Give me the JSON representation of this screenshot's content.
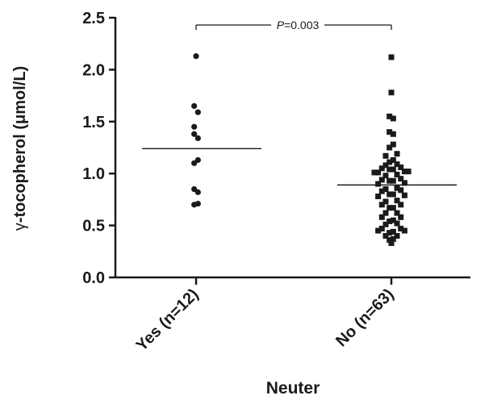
{
  "chart_data": {
    "type": "scatter",
    "title": "",
    "xlabel": "Neuter",
    "ylabel_prefix": "γ",
    "ylabel": "-tocopherol (μmol/L)",
    "ylim": [
      0,
      2.5
    ],
    "yticks": [
      "0.0",
      "0.5",
      "1.0",
      "1.5",
      "2.0",
      "2.5"
    ],
    "categories": [
      "Yes (n=12)",
      "No (n=63)"
    ],
    "annotation": {
      "p_prefix": "P",
      "p_value": "=0.003"
    },
    "series": [
      {
        "category": "Yes (n=12)",
        "marker": "circle",
        "mean": 1.24,
        "points": [
          {
            "dx": 0,
            "y": 2.13
          },
          {
            "dx": -0.3,
            "y": 1.65
          },
          {
            "dx": 0.3,
            "y": 1.59
          },
          {
            "dx": -0.3,
            "y": 1.45
          },
          {
            "dx": -0.3,
            "y": 1.38
          },
          {
            "dx": 0.3,
            "y": 1.34
          },
          {
            "dx": 0.3,
            "y": 1.13
          },
          {
            "dx": -0.3,
            "y": 1.1
          },
          {
            "dx": -0.3,
            "y": 0.85
          },
          {
            "dx": 0.3,
            "y": 0.82
          },
          {
            "dx": -0.3,
            "y": 0.7
          },
          {
            "dx": 0.3,
            "y": 0.71
          }
        ]
      },
      {
        "category": "No (n=63)",
        "marker": "square",
        "mean": 0.89,
        "points": [
          {
            "dx": 0,
            "y": 2.12
          },
          {
            "dx": 0,
            "y": 1.78
          },
          {
            "dx": -0.3,
            "y": 1.55
          },
          {
            "dx": 0.3,
            "y": 1.53
          },
          {
            "dx": -0.3,
            "y": 1.4
          },
          {
            "dx": 0.3,
            "y": 1.38
          },
          {
            "dx": 0.3,
            "y": 1.28
          },
          {
            "dx": -0.3,
            "y": 1.25
          },
          {
            "dx": 0.9,
            "y": 1.19
          },
          {
            "dx": -0.9,
            "y": 1.17
          },
          {
            "dx": 0.3,
            "y": 1.13
          },
          {
            "dx": -0.3,
            "y": 1.11
          },
          {
            "dx": 0.9,
            "y": 1.09
          },
          {
            "dx": -0.9,
            "y": 1.08
          },
          {
            "dx": 1.5,
            "y": 1.06
          },
          {
            "dx": -1.5,
            "y": 1.05
          },
          {
            "dx": 0.3,
            "y": 1.04
          },
          {
            "dx": -0.3,
            "y": 1.04
          },
          {
            "dx": 2.1,
            "y": 1.02
          },
          {
            "dx": -2.1,
            "y": 1.01
          },
          {
            "dx": 2.7,
            "y": 1.02
          },
          {
            "dx": -2.7,
            "y": 1.01
          },
          {
            "dx": 0.9,
            "y": 0.99
          },
          {
            "dx": -0.9,
            "y": 0.98
          },
          {
            "dx": 1.5,
            "y": 0.95
          },
          {
            "dx": -1.5,
            "y": 0.94
          },
          {
            "dx": 0.3,
            "y": 0.93
          },
          {
            "dx": -0.3,
            "y": 0.93
          },
          {
            "dx": 2.1,
            "y": 0.91
          },
          {
            "dx": -2.1,
            "y": 0.9
          },
          {
            "dx": 0.9,
            "y": 0.86
          },
          {
            "dx": -0.9,
            "y": 0.85
          },
          {
            "dx": 1.5,
            "y": 0.84
          },
          {
            "dx": -1.5,
            "y": 0.83
          },
          {
            "dx": 0.3,
            "y": 0.8
          },
          {
            "dx": -0.3,
            "y": 0.8
          },
          {
            "dx": 2.1,
            "y": 0.79
          },
          {
            "dx": -2.1,
            "y": 0.78
          },
          {
            "dx": 0.9,
            "y": 0.74
          },
          {
            "dx": -0.9,
            "y": 0.73
          },
          {
            "dx": 1.5,
            "y": 0.7
          },
          {
            "dx": -1.5,
            "y": 0.7
          },
          {
            "dx": 0.3,
            "y": 0.67
          },
          {
            "dx": -0.3,
            "y": 0.67
          },
          {
            "dx": 0.9,
            "y": 0.62
          },
          {
            "dx": -0.9,
            "y": 0.62
          },
          {
            "dx": 1.5,
            "y": 0.58
          },
          {
            "dx": -1.5,
            "y": 0.58
          },
          {
            "dx": 0.3,
            "y": 0.55
          },
          {
            "dx": -0.3,
            "y": 0.54
          },
          {
            "dx": 0.9,
            "y": 0.52
          },
          {
            "dx": -0.9,
            "y": 0.51
          },
          {
            "dx": 1.5,
            "y": 0.47
          },
          {
            "dx": -1.5,
            "y": 0.47
          },
          {
            "dx": 2.1,
            "y": 0.45
          },
          {
            "dx": -2.1,
            "y": 0.45
          },
          {
            "dx": 0.3,
            "y": 0.44
          },
          {
            "dx": -0.3,
            "y": 0.43
          },
          {
            "dx": 0.9,
            "y": 0.4
          },
          {
            "dx": -0.9,
            "y": 0.4
          },
          {
            "dx": 0.3,
            "y": 0.37
          },
          {
            "dx": -0.3,
            "y": 0.36
          },
          {
            "dx": 0,
            "y": 0.33
          }
        ]
      }
    ]
  },
  "colors": {
    "marker": "#1a1a1a",
    "axis": "#1a1a1a",
    "mean_line": "#1a1a1a"
  }
}
